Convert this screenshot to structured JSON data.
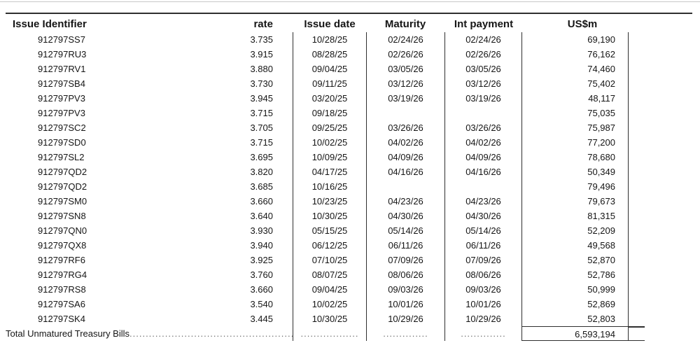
{
  "header": {
    "columns": [
      "Issue Identifier",
      "rate",
      "Issue date",
      "Maturity",
      "Int payment",
      "US$m"
    ]
  },
  "rows": [
    [
      "912797SS7",
      "3.735",
      "10/28/25",
      "02/24/26",
      "02/24/26",
      "69,190"
    ],
    [
      "912797RU3",
      "3.915",
      "08/28/25",
      "02/26/26",
      "02/26/26",
      "76,162"
    ],
    [
      "912797RV1",
      "3.880",
      "09/04/25",
      "03/05/26",
      "03/05/26",
      "74,460"
    ],
    [
      "912797SB4",
      "3.730",
      "09/11/25",
      "03/12/26",
      "03/12/26",
      "75,402"
    ],
    [
      "912797PV3",
      "3.945",
      "03/20/25",
      "03/19/26",
      "03/19/26",
      "48,117"
    ],
    [
      "912797PV3",
      "3.715",
      "09/18/25",
      "",
      "",
      "75,035"
    ],
    [
      "912797SC2",
      "3.705",
      "09/25/25",
      "03/26/26",
      "03/26/26",
      "75,987"
    ],
    [
      "912797SD0",
      "3.715",
      "10/02/25",
      "04/02/26",
      "04/02/26",
      "77,200"
    ],
    [
      "912797SL2",
      "3.695",
      "10/09/25",
      "04/09/26",
      "04/09/26",
      "78,680"
    ],
    [
      "912797QD2",
      "3.820",
      "04/17/25",
      "04/16/26",
      "04/16/26",
      "50,349"
    ],
    [
      "912797QD2",
      "3.685",
      "10/16/25",
      "",
      "",
      "79,496"
    ],
    [
      "912797SM0",
      "3.660",
      "10/23/25",
      "04/23/26",
      "04/23/26",
      "79,673"
    ],
    [
      "912797SN8",
      "3.640",
      "10/30/25",
      "04/30/26",
      "04/30/26",
      "81,315"
    ],
    [
      "912797QN0",
      "3.930",
      "05/15/25",
      "05/14/26",
      "05/14/26",
      "52,209"
    ],
    [
      "912797QX8",
      "3.940",
      "06/12/25",
      "06/11/26",
      "06/11/26",
      "49,568"
    ],
    [
      "912797RF6",
      "3.925",
      "07/10/25",
      "07/09/26",
      "07/09/26",
      "52,870"
    ],
    [
      "912797RG4",
      "3.760",
      "08/07/25",
      "08/06/26",
      "08/06/26",
      "52,786"
    ],
    [
      "912797RS8",
      "3.660",
      "09/04/25",
      "09/03/26",
      "09/03/26",
      "50,999"
    ],
    [
      "912797SA6",
      "3.540",
      "10/02/25",
      "10/01/26",
      "10/01/26",
      "52,869"
    ],
    [
      "912797SK4",
      "3.445",
      "10/30/25",
      "10/29/26",
      "10/29/26",
      "52,803"
    ]
  ],
  "total": {
    "label": "Total Unmatured Treasury Bills",
    "leader_dots": "......................................................................................",
    "issue_date_dots": "..................",
    "maturity_dots": "..............",
    "int_payment_dots": "..............",
    "value": "6,593,194"
  },
  "colors": {
    "text": "#151515",
    "rule": "#2f2f2f",
    "light_rule": "#c9c9c9",
    "leader_dots": "#6f6f6f"
  }
}
